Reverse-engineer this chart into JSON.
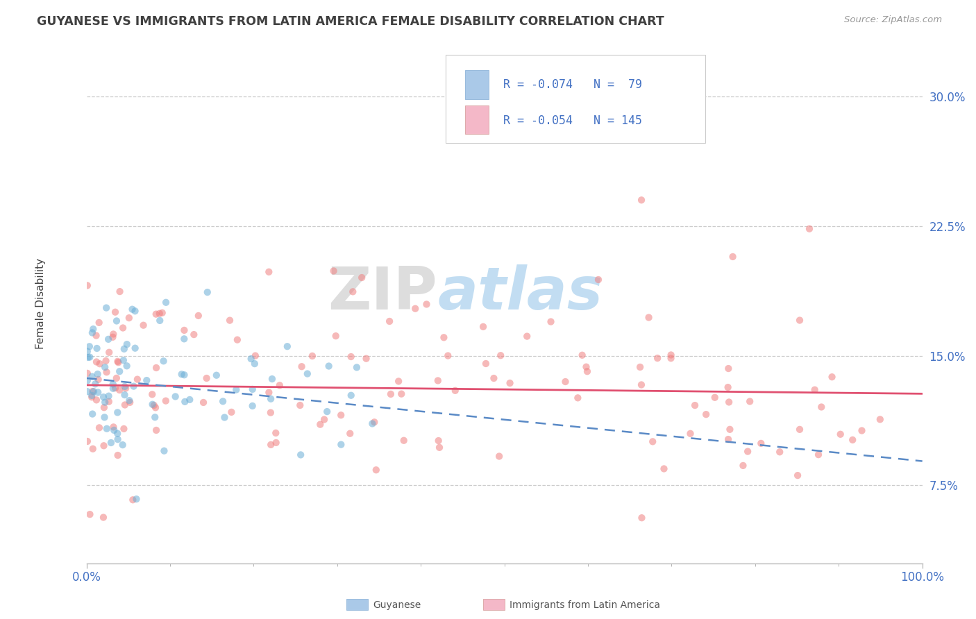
{
  "title": "GUYANESE VS IMMIGRANTS FROM LATIN AMERICA FEMALE DISABILITY CORRELATION CHART",
  "source": "Source: ZipAtlas.com",
  "ylabel": "Female Disability",
  "ytick_vals": [
    0.075,
    0.15,
    0.225,
    0.3
  ],
  "xlim": [
    0.0,
    1.0
  ],
  "ylim": [
    0.03,
    0.33
  ],
  "color_blue_legend": "#aac9e8",
  "color_pink_legend": "#f4b8c8",
  "scatter_color_blue": "#6baed6",
  "scatter_color_pink": "#f08080",
  "trend_color_blue": "#5a8ac6",
  "trend_color_pink": "#e05070",
  "watermark_zip": "ZIP",
  "watermark_atlas": "atlas",
  "blue_R": -0.074,
  "blue_N": 79,
  "pink_R": -0.054,
  "pink_N": 145
}
